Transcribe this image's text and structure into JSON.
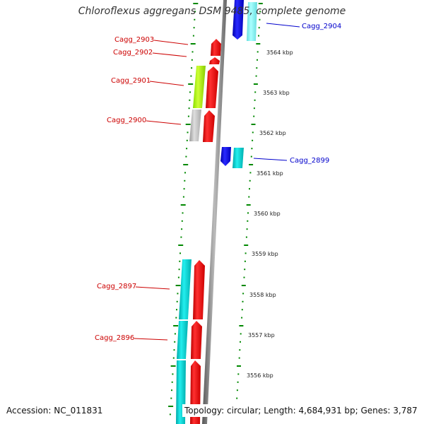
{
  "title": "Chloroflexus aggregans DSM 9485, complete genome",
  "accession_text": "Accession: NC_011831",
  "topology_text": "Topology: circular; Length: 4,684,931 bp; Genes: 3,787",
  "colors": {
    "forward_label": "#cc0000",
    "reverse_label": "#0000cc",
    "cds_red": "#ff0000",
    "cds_blue": "#0000ee",
    "cyan": "#00dddd",
    "lime": "#aaff00",
    "gray": "#c0c0c0",
    "backbone": "#888888",
    "ticks": "#008800"
  },
  "axis_ticks": [
    "3564 kbp",
    "3563 kbp",
    "3562 kbp",
    "3561 kbp",
    "3560 kbp",
    "3559 kbp",
    "3558 kbp",
    "3557 kbp",
    "3556 kbp"
  ],
  "gene_labels_forward": [
    "Cagg_2903",
    "Cagg_2902",
    "Cagg_2901",
    "Cagg_2900",
    "Cagg_2897",
    "Cagg_2896"
  ],
  "gene_labels_reverse": [
    "Cagg_2904",
    "Cagg_2899"
  ]
}
